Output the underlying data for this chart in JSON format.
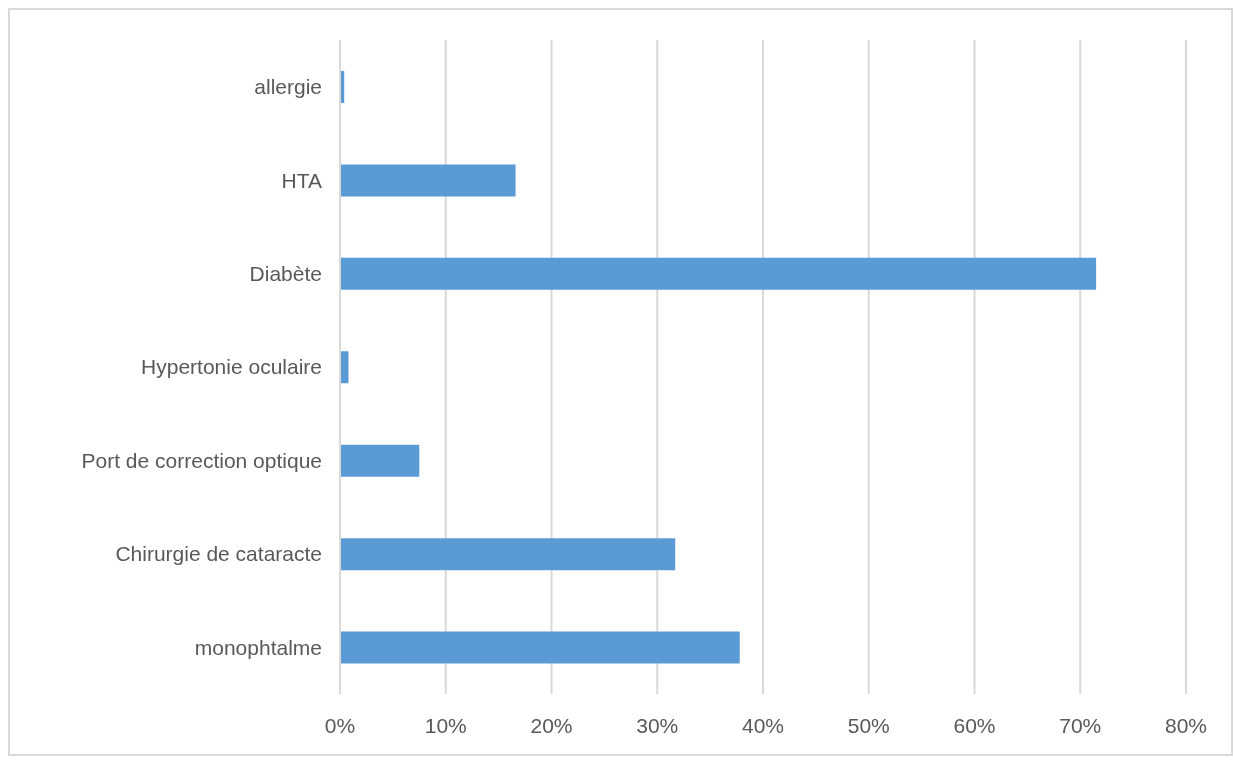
{
  "chart_data": {
    "type": "bar",
    "orientation": "horizontal",
    "categories": [
      "allergie",
      "HTA",
      "Diabète",
      "Hypertonie oculaire",
      "Port de correction optique",
      "Chirurgie de cataracte",
      "monophtalme"
    ],
    "values": [
      0.4,
      16.6,
      71.5,
      0.8,
      7.5,
      31.7,
      37.8
    ],
    "color": "#5b9bd5",
    "xlim": [
      0,
      80
    ],
    "xticks": [
      {
        "value": 0,
        "label": "0%"
      },
      {
        "value": 10,
        "label": "10%"
      },
      {
        "value": 20,
        "label": "20%"
      },
      {
        "value": 30,
        "label": "30%"
      },
      {
        "value": 40,
        "label": "40%"
      },
      {
        "value": 50,
        "label": "50%"
      },
      {
        "value": 60,
        "label": "60%"
      },
      {
        "value": 70,
        "label": "70%"
      },
      {
        "value": 80,
        "label": "80%"
      }
    ],
    "grid": "x",
    "legend": false
  }
}
